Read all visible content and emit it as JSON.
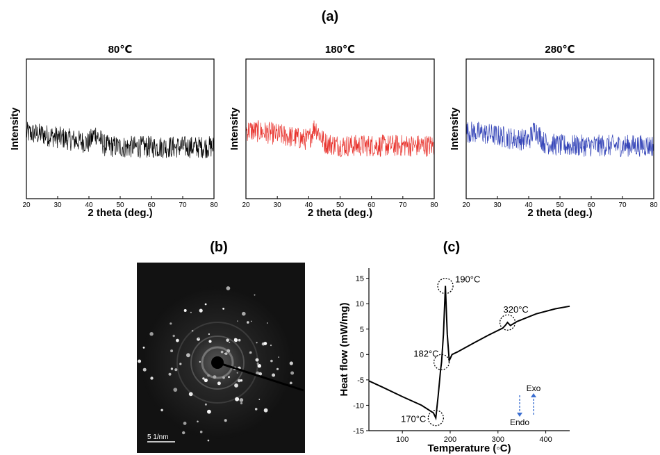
{
  "panel_labels": {
    "a": "(a)",
    "b": "(b)",
    "c": "(c)"
  },
  "chart_data": [
    {
      "type": "line",
      "title": "80℃",
      "xlabel": "2 theta (deg.)",
      "ylabel": "Intensity",
      "xlim": [
        20,
        80
      ],
      "xticks": [
        "20",
        "30",
        "40",
        "50",
        "60",
        "70",
        "80"
      ],
      "color": "#000000",
      "series": [
        {
          "x": [
            20,
            25,
            30,
            35,
            40,
            42,
            45,
            50,
            55,
            60,
            65,
            70,
            75,
            80
          ],
          "y": [
            0.47,
            0.46,
            0.44,
            0.42,
            0.4,
            0.47,
            0.38,
            0.37,
            0.37,
            0.37,
            0.37,
            0.37,
            0.37,
            0.37
          ]
        }
      ]
    },
    {
      "type": "line",
      "title": "180℃",
      "xlabel": "2 theta (deg.)",
      "ylabel": "Intensity",
      "xlim": [
        20,
        80
      ],
      "xticks": [
        "20",
        "30",
        "40",
        "50",
        "60",
        "70",
        "80"
      ],
      "color": "#e8312b",
      "series": [
        {
          "x": [
            20,
            25,
            30,
            35,
            40,
            42,
            45,
            50,
            55,
            60,
            65,
            70,
            75,
            80
          ],
          "y": [
            0.49,
            0.48,
            0.46,
            0.44,
            0.42,
            0.52,
            0.4,
            0.38,
            0.38,
            0.38,
            0.38,
            0.38,
            0.38,
            0.38
          ]
        }
      ]
    },
    {
      "type": "line",
      "title": "280℃",
      "xlabel": "2 theta (deg.)",
      "ylabel": "Intensity",
      "xlim": [
        20,
        80
      ],
      "xticks": [
        "20",
        "30",
        "40",
        "50",
        "60",
        "70",
        "80"
      ],
      "color": "#3545b8",
      "series": [
        {
          "x": [
            20,
            25,
            30,
            35,
            40,
            42,
            45,
            50,
            55,
            60,
            65,
            70,
            75,
            80
          ],
          "y": [
            0.48,
            0.47,
            0.45,
            0.43,
            0.42,
            0.5,
            0.4,
            0.38,
            0.38,
            0.38,
            0.38,
            0.38,
            0.38,
            0.38
          ]
        }
      ]
    },
    {
      "type": "line",
      "title": "",
      "xlabel": "Temperature (◦C)",
      "ylabel": "Heat flow (mW/mg)",
      "xlim": [
        30,
        450
      ],
      "ylim": [
        -15,
        17
      ],
      "xticks": [
        "100",
        "200",
        "300",
        "400"
      ],
      "yticks": [
        "15",
        "10",
        "5",
        "0",
        "-5",
        "-10",
        "-15"
      ],
      "color": "#000000",
      "series": [
        {
          "x": [
            30,
            60,
            100,
            140,
            165,
            170,
            175,
            180,
            182,
            186,
            190,
            194,
            198,
            200,
            204,
            215,
            250,
            280,
            310,
            316,
            320,
            326,
            340,
            380,
            420,
            450
          ],
          "y": [
            -5.2,
            -6.5,
            -8.3,
            -10.0,
            -11.5,
            -12.5,
            -8.0,
            -3.0,
            -1.5,
            4.0,
            13.5,
            4.0,
            -1.2,
            -0.8,
            0.0,
            0.5,
            2.3,
            3.8,
            5.2,
            5.8,
            6.3,
            5.7,
            6.5,
            8.0,
            9.0,
            9.5
          ]
        }
      ],
      "annotations": [
        {
          "text": "190°C",
          "x": 190,
          "y": 13.5
        },
        {
          "text": "320°C",
          "x": 320,
          "y": 6.3
        },
        {
          "text": "182°C",
          "x": 182,
          "y": -1.5
        },
        {
          "text": "170°C",
          "x": 170,
          "y": -12.5
        }
      ],
      "legend": {
        "exo": "Exo",
        "endo": "Endo"
      }
    }
  ],
  "saed_image": {
    "scale_bar": "5 1/nm"
  }
}
